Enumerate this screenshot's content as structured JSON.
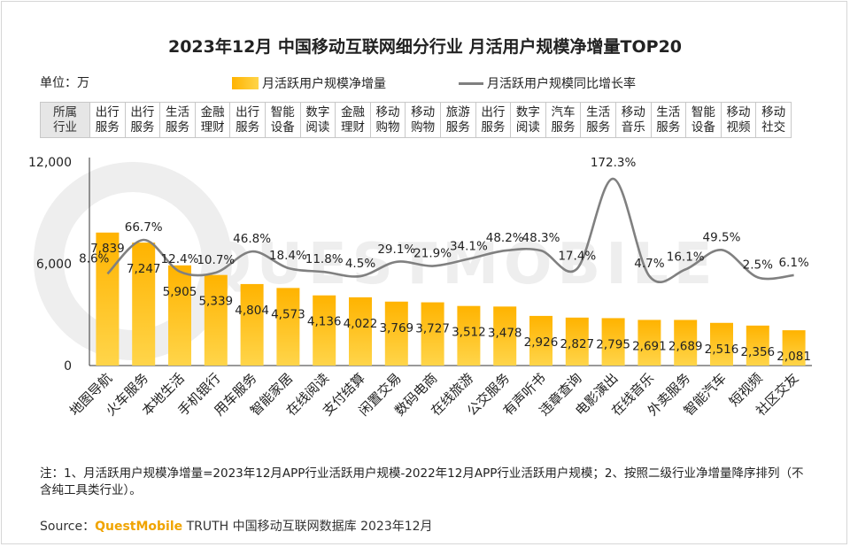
{
  "title": "2023年12月 中国移动互联网细分行业 月活用户规模净增量TOP20",
  "unit_label": "单位：万",
  "legend": {
    "bar_label": "月活跃用户规模净增量",
    "line_label": "月活跃用户规模同比增长率"
  },
  "category_header": "所属行业",
  "industries": [
    "出行服务",
    "出行服务",
    "生活服务",
    "金融理财",
    "出行服务",
    "智能设备",
    "数字阅读",
    "金融理财",
    "移动购物",
    "移动购物",
    "旅游服务",
    "出行服务",
    "数字阅读",
    "汽车服务",
    "生活服务",
    "移动音乐",
    "生活服务",
    "智能设备",
    "移动视频",
    "移动社交"
  ],
  "watermark": "QUESTMOBILE",
  "colors": {
    "bar_top": "#ffb300",
    "bar_bottom": "#ffd54a",
    "line": "#808080",
    "brand": "#f0a400"
  },
  "chart_data": {
    "type": "bar",
    "categories": [
      "地图导航",
      "火车服务",
      "本地生活",
      "手机银行",
      "用车服务",
      "智能家居",
      "在线阅读",
      "支付结算",
      "闲置交易",
      "数码电商",
      "在线旅游",
      "公交服务",
      "有声听书",
      "违章查询",
      "电影演出",
      "在线音乐",
      "外卖服务",
      "智能汽车",
      "短视频",
      "社区交友"
    ],
    "series": [
      {
        "name": "月活跃用户规模净增量",
        "type": "bar",
        "values": [
          7839,
          7247,
          5905,
          5339,
          4804,
          4573,
          4136,
          4022,
          3769,
          3727,
          3512,
          3478,
          2926,
          2827,
          2795,
          2691,
          2689,
          2516,
          2356,
          2081
        ],
        "labels": [
          "7,839",
          "7,247",
          "5,905",
          "5,339",
          "4,804",
          "4,573",
          "4,136",
          "4,022",
          "3,769",
          "3,727",
          "3,512",
          "3,478",
          "2,926",
          "2,827",
          "2,795",
          "2,691",
          "2,689",
          "2,516",
          "2,356",
          "2,081"
        ]
      },
      {
        "name": "月活跃用户规模同比增长率",
        "type": "line",
        "values": [
          8.6,
          66.7,
          12.4,
          10.7,
          46.8,
          18.4,
          11.8,
          4.5,
          29.1,
          21.9,
          34.1,
          48.2,
          48.3,
          17.4,
          172.3,
          4.7,
          16.1,
          49.5,
          2.5,
          6.1
        ],
        "labels": [
          "8.6%",
          "66.7%",
          "12.4%",
          "10.7%",
          "46.8%",
          "18.4%",
          "11.8%",
          "4.5%",
          "29.1%",
          "21.9%",
          "34.1%",
          "48.2%",
          "48.3%",
          "17.4%",
          "172.3%",
          "4.7%",
          "16.1%",
          "49.5%",
          "2.5%",
          "6.1%"
        ]
      }
    ],
    "yticks": [
      "12,000",
      "6,000",
      "0"
    ],
    "ylim": [
      0,
      12000
    ]
  },
  "note": "注：1、月活跃用户规模净增量=2023年12月APP行业活跃用户规模-2022年12月APP行业活跃用户规模；2、按照二级行业净增量降序排列（不含纯工具类行业）。",
  "source": {
    "prefix": "Source：",
    "brand": "QuestMobile",
    "suffix": " TRUTH 中国移动互联网数据库 2023年12月"
  }
}
